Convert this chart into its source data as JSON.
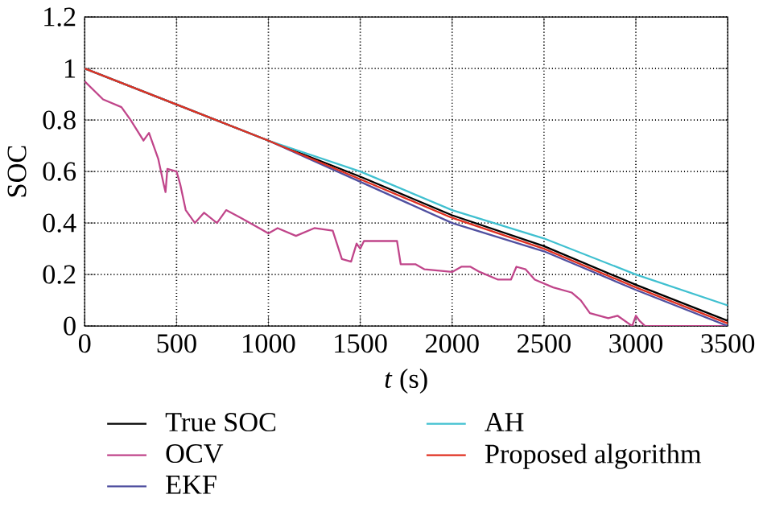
{
  "chart_data": {
    "type": "line",
    "xlabel": "*t* (s)",
    "ylabel": "SOC",
    "xlim": [
      0,
      3500
    ],
    "ylim": [
      0,
      1.2
    ],
    "xticks": [
      0,
      500,
      1000,
      1500,
      2000,
      2500,
      3000,
      3500
    ],
    "yticks": [
      0,
      0.2,
      0.4,
      0.6,
      0.8,
      1,
      1.2
    ],
    "grid": true,
    "legend": "bottom",
    "series": [
      {
        "name": "True SOC",
        "color": "#000000",
        "x": [
          0,
          500,
          1000,
          1500,
          2000,
          2500,
          3000,
          3500
        ],
        "values": [
          1.0,
          0.86,
          0.72,
          0.58,
          0.43,
          0.31,
          0.16,
          0.02
        ]
      },
      {
        "name": "OCV",
        "color": "#c0458a",
        "x": [
          0,
          100,
          200,
          250,
          320,
          350,
          400,
          430,
          440,
          450,
          500,
          520,
          550,
          600,
          650,
          720,
          770,
          850,
          950,
          1000,
          1050,
          1150,
          1250,
          1350,
          1400,
          1450,
          1480,
          1500,
          1520,
          1700,
          1720,
          1800,
          1850,
          2000,
          2050,
          2100,
          2150,
          2250,
          2320,
          2350,
          2400,
          2450,
          2550,
          2650,
          2700,
          2750,
          2850,
          2900,
          2980,
          3000,
          3020,
          3050,
          3500
        ],
        "values": [
          0.95,
          0.88,
          0.85,
          0.8,
          0.72,
          0.75,
          0.65,
          0.55,
          0.52,
          0.61,
          0.6,
          0.55,
          0.45,
          0.4,
          0.44,
          0.4,
          0.45,
          0.42,
          0.38,
          0.36,
          0.38,
          0.35,
          0.38,
          0.37,
          0.26,
          0.25,
          0.32,
          0.3,
          0.33,
          0.33,
          0.24,
          0.24,
          0.22,
          0.21,
          0.23,
          0.23,
          0.21,
          0.18,
          0.18,
          0.23,
          0.22,
          0.18,
          0.15,
          0.13,
          0.1,
          0.05,
          0.03,
          0.04,
          0.0,
          0.04,
          0.02,
          0.0,
          0.0
        ]
      },
      {
        "name": "EKF",
        "color": "#5050a0",
        "x": [
          0,
          500,
          1000,
          1500,
          2000,
          2500,
          3000,
          3500
        ],
        "values": [
          1.0,
          0.86,
          0.72,
          0.56,
          0.4,
          0.29,
          0.14,
          0.0
        ]
      },
      {
        "name": "AH",
        "color": "#40c0d0",
        "x": [
          0,
          500,
          1000,
          1500,
          2000,
          2500,
          3000,
          3500
        ],
        "values": [
          1.0,
          0.86,
          0.72,
          0.6,
          0.45,
          0.34,
          0.2,
          0.08
        ]
      },
      {
        "name": "Proposed algorithm",
        "color": "#e03020",
        "x": [
          0,
          500,
          1000,
          1500,
          2000,
          2500,
          3000,
          3500
        ],
        "values": [
          1.0,
          0.86,
          0.72,
          0.57,
          0.42,
          0.3,
          0.15,
          0.01
        ]
      }
    ]
  }
}
